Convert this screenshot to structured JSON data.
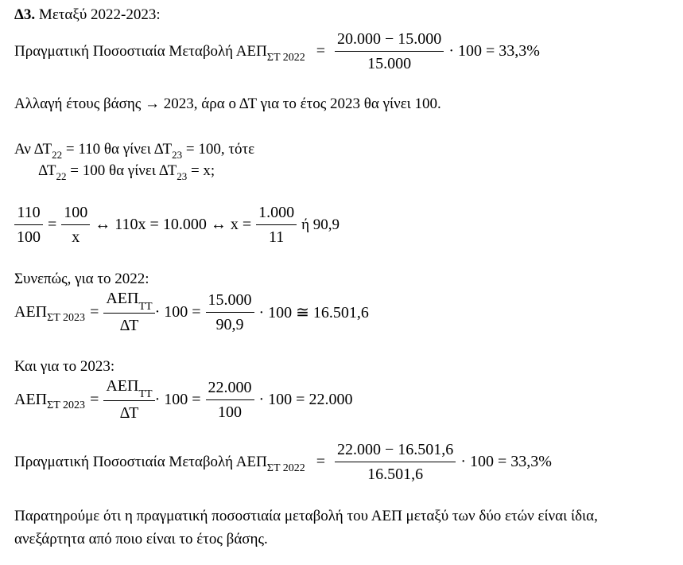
{
  "heading": {
    "label": "Δ3.",
    "text": "Μεταξύ 2022-2023:"
  },
  "eq1": {
    "lhs": "Πραγματική Ποσοστιαία Μεταβολή ΑΕΠ",
    "lhs_sub": "ΣΤ 2022",
    "eq": "=",
    "num": "20.000 − 15.000",
    "den": "15.000",
    "rest": "· 100 = 33,3%"
  },
  "base_change": "Αλλαγή έτους βάσης → 2023, άρα ο ΔΤ για το έτος 2023 θα γίνει 100.",
  "rule1": [
    "Αν ΔΤ",
    "22",
    " = 110 θα γίνει ΔΤ",
    "23",
    " = 100, τότε"
  ],
  "rule2": [
    "ΔΤ",
    "22",
    " = 100 θα γίνει ΔΤ",
    "23",
    " = x;"
  ],
  "eq2": {
    "f1": {
      "num": "110",
      "den": "100"
    },
    "eq": "=",
    "f2": {
      "num": "100",
      "den": "x"
    },
    "mid": "↔ 110x = 10.000 ↔ x =",
    "f3": {
      "num": "1.000",
      "den": "11"
    },
    "tail": "ή 90,9"
  },
  "for2022": "Συνεπώς, για το 2022:",
  "eq3": {
    "lhs": "ΑΕΠ",
    "lhs_sub": "ΣΤ 2023",
    "eq": "=",
    "fa_num": "ΑΕΠ",
    "fa_num_sub": "ΤΤ",
    "fa_den": "ΔΤ",
    "mid": "· 100 =",
    "fb_num": "15.000",
    "fb_den": "90,9",
    "rest": "· 100 ≅ 16.501,6"
  },
  "for2023": "Και για το 2023:",
  "eq4": {
    "lhs": "ΑΕΠ",
    "lhs_sub": "ΣΤ 2023",
    "eq": "=",
    "fa_num": "ΑΕΠ",
    "fa_num_sub": "ΤΤ",
    "fa_den": "ΔΤ",
    "mid": "· 100 =",
    "fb_num": "22.000",
    "fb_den": "100",
    "rest": "· 100 = 22.000"
  },
  "eq5": {
    "lhs": "Πραγματική Ποσοστιαία Μεταβολή ΑΕΠ",
    "lhs_sub": "ΣΤ 2022",
    "eq": "=",
    "num": "22.000 − 16.501,6",
    "den": "16.501,6",
    "rest": "· 100 = 33,3%"
  },
  "conclusion": [
    "Παρατηρούμε ότι η πραγματική ποσοστιαία μεταβολή του ΑΕΠ μεταξύ των δύο ετών είναι ίδια,",
    "ανεξάρτητα από ποιο είναι το έτος βάσης."
  ]
}
